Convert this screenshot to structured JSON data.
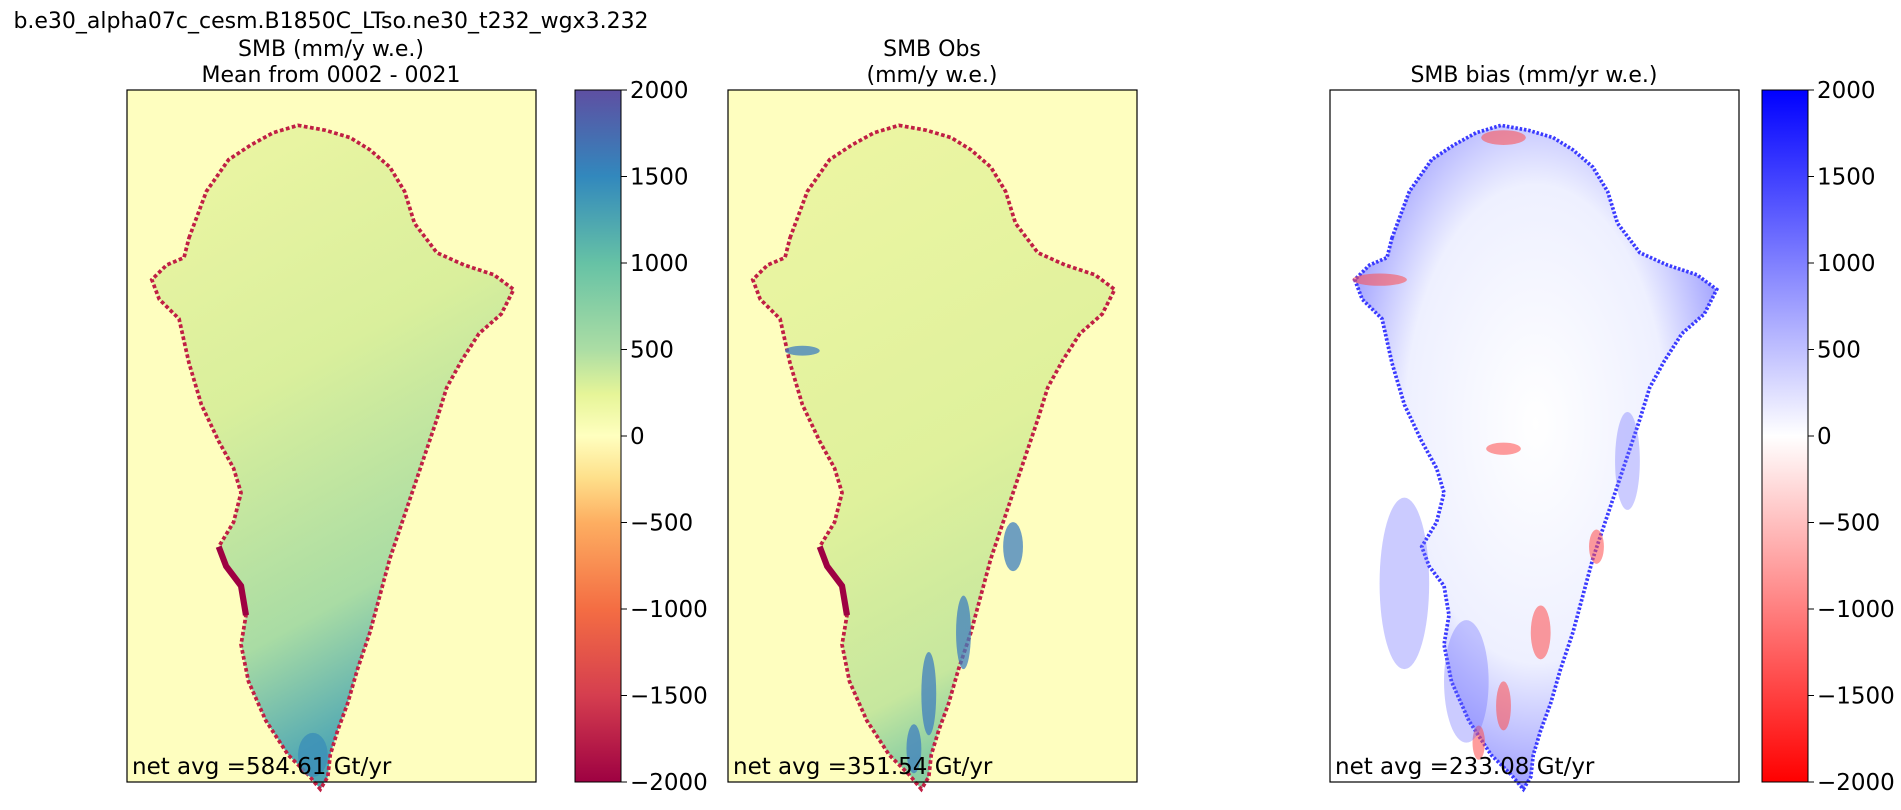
{
  "chart_data": [
    {
      "type": "heatmap",
      "title_lines": [
        "b.e30_alpha07c_cesm.B1850C_LTso.ne30_t232_wgx3.232",
        "SMB (mm/y w.e.)",
        "Mean from 0002 - 0021"
      ],
      "field": "SMB (mm/y w.e.)",
      "annotation": "net avg =584.61 Gt/yr",
      "colormap": "Spectral",
      "colorbar": {
        "range": [
          -2000,
          2000
        ],
        "ticks": [
          2000,
          1500,
          1000,
          500,
          0,
          -500,
          -1000,
          -1500,
          -2000
        ],
        "tick_labels": [
          "2000",
          "1500",
          "1000",
          "500",
          "0",
          "−500",
          "−1000",
          "−1500",
          "−2000"
        ]
      }
    },
    {
      "type": "heatmap",
      "title_lines": [
        "SMB Obs",
        "(mm/y w.e.)"
      ],
      "field": "SMB Obs (mm/y w.e.)",
      "annotation": "net avg =351.54 Gt/yr",
      "colormap": "Spectral"
    },
    {
      "type": "heatmap",
      "title_lines": [
        "SMB bias (mm/yr w.e.)"
      ],
      "field": "SMB bias (mm/yr w.e.)",
      "annotation": "net avg =233.08 Gt/yr",
      "colormap": "bwr",
      "colorbar": {
        "range": [
          -2000,
          2000
        ],
        "ticks": [
          2000,
          1500,
          1000,
          500,
          0,
          -500,
          -1000,
          -1500,
          -2000
        ],
        "tick_labels": [
          "2000",
          "1500",
          "1000",
          "500",
          "0",
          "−500",
          "−1000",
          "−1500",
          "−2000"
        ]
      }
    }
  ],
  "colors": {
    "background_land": "#fefebf",
    "ice_interior": "#e4f29a",
    "ice_coast_model": "#a8dca4",
    "edge_red": "#c01f44",
    "bias_white": "#f5f5ff",
    "bias_blue": "#3a3aff",
    "bias_red": "#ff4a4a"
  }
}
